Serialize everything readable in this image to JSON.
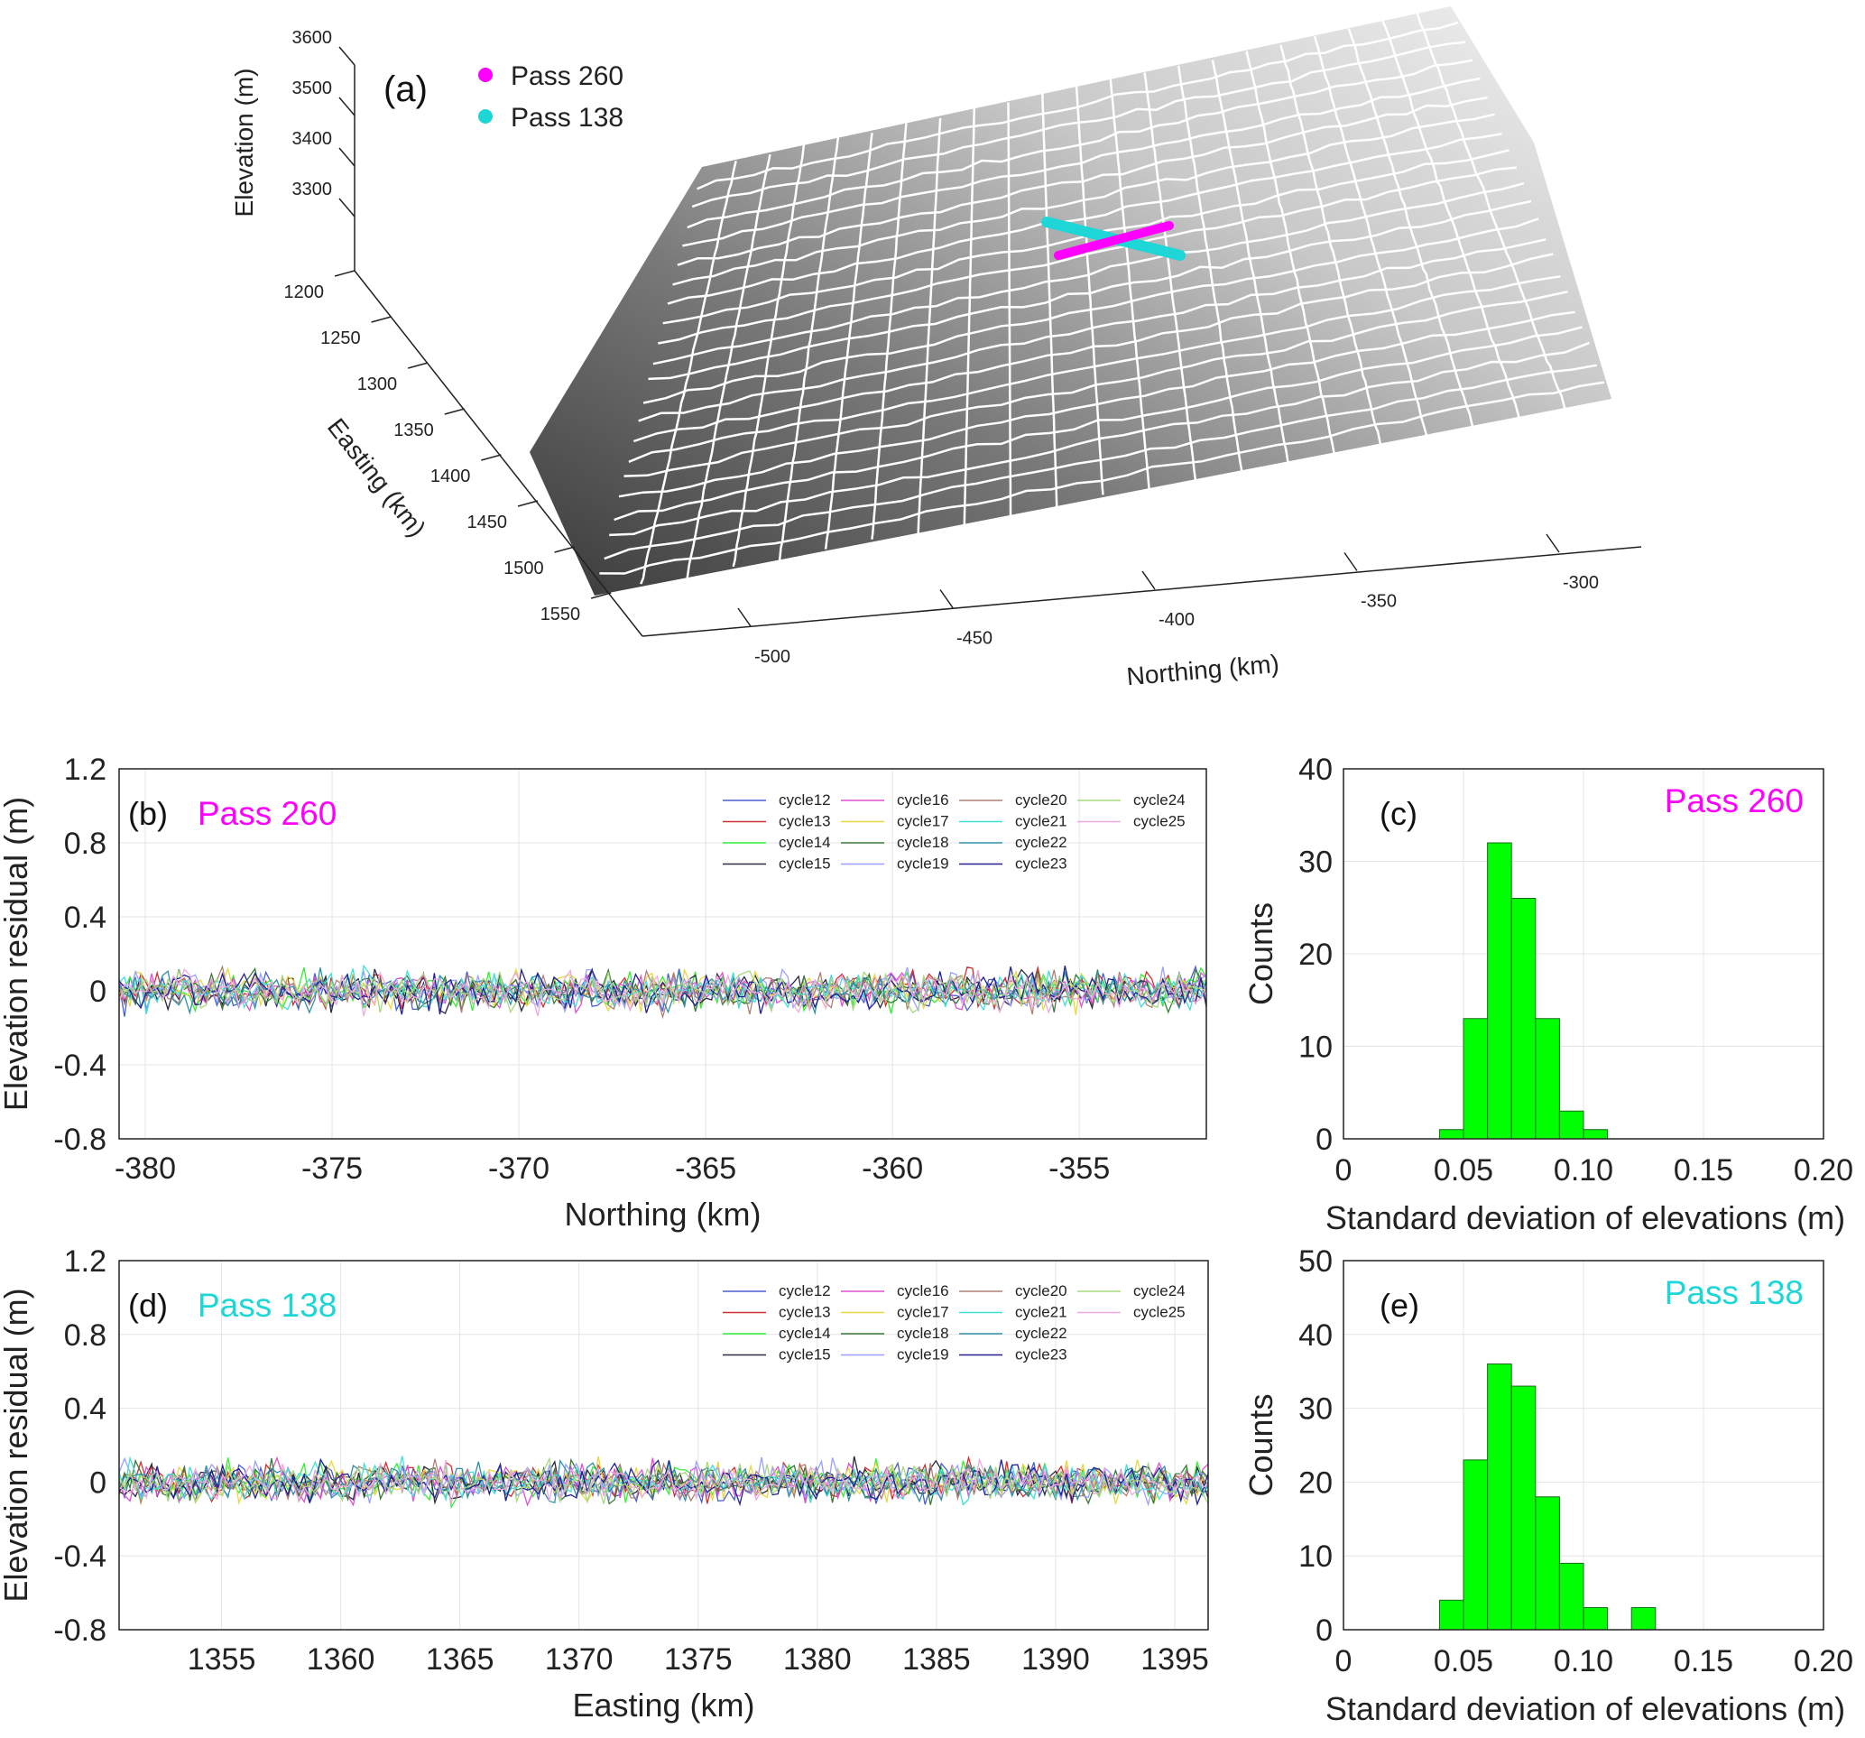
{
  "colors": {
    "pass260": "#ff00ff",
    "pass138": "#1fd6d6",
    "hist_fill": "#00ff00",
    "hist_edge": "#1a6a1a"
  },
  "chart_data": [
    {
      "panel": "(a)",
      "type": "surface3d",
      "legend": [
        {
          "name": "Pass 260",
          "color": "#ff00ff"
        },
        {
          "name": "Pass 138",
          "color": "#1fd6d6"
        }
      ],
      "zlabel": "Elevation (m)",
      "zticks": [
        "3600",
        "3500",
        "3400",
        "3300"
      ],
      "ylabel": "Easting (km)",
      "yticks": [
        "1200",
        "1250",
        "1300",
        "1350",
        "1400",
        "1450",
        "1500",
        "1550"
      ],
      "xlabel": "Northing (km)",
      "xticks": [
        "-500",
        "-450",
        "-400",
        "-350",
        "-300"
      ]
    },
    {
      "panel": "(b)",
      "type": "line",
      "annotation": "Pass 260",
      "xlabel": "Northing (km)",
      "ylabel": "Elevation residual (m)",
      "xlim": [
        -380.7,
        -351.6
      ],
      "ylim": [
        -0.8,
        1.2
      ],
      "xticks": [
        -380,
        -375,
        -370,
        -365,
        -360,
        -355
      ],
      "yticks": [
        -0.8,
        -0.4,
        0,
        0.4,
        0.8,
        1.2
      ],
      "grid": true,
      "legend_position": "top-right",
      "series": [
        {
          "name": "cycle12",
          "color": "#4a5fd0"
        },
        {
          "name": "cycle13",
          "color": "#d03030"
        },
        {
          "name": "cycle14",
          "color": "#33ee33"
        },
        {
          "name": "cycle15",
          "color": "#2a2a40"
        },
        {
          "name": "cycle16",
          "color": "#e050d0"
        },
        {
          "name": "cycle17",
          "color": "#e8d840"
        },
        {
          "name": "cycle18",
          "color": "#3a7a3a"
        },
        {
          "name": "cycle19",
          "color": "#9aa0ff"
        },
        {
          "name": "cycle20",
          "color": "#b08078"
        },
        {
          "name": "cycle21",
          "color": "#40e0d8"
        },
        {
          "name": "cycle22",
          "color": "#3090a8"
        },
        {
          "name": "cycle23",
          "color": "#202090"
        },
        {
          "name": "cycle24",
          "color": "#a8d880"
        },
        {
          "name": "cycle25",
          "color": "#f0a8e0"
        }
      ]
    },
    {
      "panel": "(c)",
      "type": "bar",
      "annotation": "Pass 260",
      "xlabel": "Standard deviation of elevations (m)",
      "ylabel": "Counts",
      "xlim": [
        0,
        0.2
      ],
      "ylim": [
        0,
        40
      ],
      "xticks": [
        "0",
        "0.05",
        "0.10",
        "0.15",
        "0.20"
      ],
      "yticks": [
        0,
        10,
        20,
        30,
        40
      ],
      "bin_edges": [
        0.04,
        0.05,
        0.06,
        0.07,
        0.08,
        0.09,
        0.1,
        0.11
      ],
      "values": [
        1,
        13,
        32,
        26,
        13,
        3,
        1
      ]
    },
    {
      "panel": "(d)",
      "type": "line",
      "annotation": "Pass 138",
      "xlabel": "Easting (km)",
      "ylabel": "Elevation residual (m)",
      "xlim": [
        1350.7,
        1396.4
      ],
      "ylim": [
        -0.8,
        1.2
      ],
      "xticks": [
        1355,
        1360,
        1365,
        1370,
        1375,
        1380,
        1385,
        1390,
        1395
      ],
      "yticks": [
        -0.8,
        -0.4,
        0,
        0.4,
        0.8,
        1.2
      ],
      "grid": true,
      "legend_position": "top-right",
      "series": [
        {
          "name": "cycle12",
          "color": "#4a5fd0"
        },
        {
          "name": "cycle13",
          "color": "#d03030"
        },
        {
          "name": "cycle14",
          "color": "#33ee33"
        },
        {
          "name": "cycle15",
          "color": "#2a2a40"
        },
        {
          "name": "cycle16",
          "color": "#e050d0"
        },
        {
          "name": "cycle17",
          "color": "#e8d840"
        },
        {
          "name": "cycle18",
          "color": "#3a7a3a"
        },
        {
          "name": "cycle19",
          "color": "#9aa0ff"
        },
        {
          "name": "cycle20",
          "color": "#b08078"
        },
        {
          "name": "cycle21",
          "color": "#40e0d8"
        },
        {
          "name": "cycle22",
          "color": "#3090a8"
        },
        {
          "name": "cycle23",
          "color": "#202090"
        },
        {
          "name": "cycle24",
          "color": "#a8d880"
        },
        {
          "name": "cycle25",
          "color": "#f0a8e0"
        }
      ]
    },
    {
      "panel": "(e)",
      "type": "bar",
      "annotation": "Pass 138",
      "xlabel": "Standard deviation of elevations (m)",
      "ylabel": "Counts",
      "xlim": [
        0,
        0.2
      ],
      "ylim": [
        0,
        50
      ],
      "xticks": [
        "0",
        "0.05",
        "0.10",
        "0.15",
        "0.20"
      ],
      "yticks": [
        0,
        10,
        20,
        30,
        40,
        50
      ],
      "bin_edges": [
        0.04,
        0.05,
        0.06,
        0.07,
        0.08,
        0.09,
        0.1,
        0.11,
        0.12,
        0.13
      ],
      "values": [
        4,
        23,
        36,
        33,
        18,
        9,
        3,
        0,
        3
      ]
    }
  ]
}
